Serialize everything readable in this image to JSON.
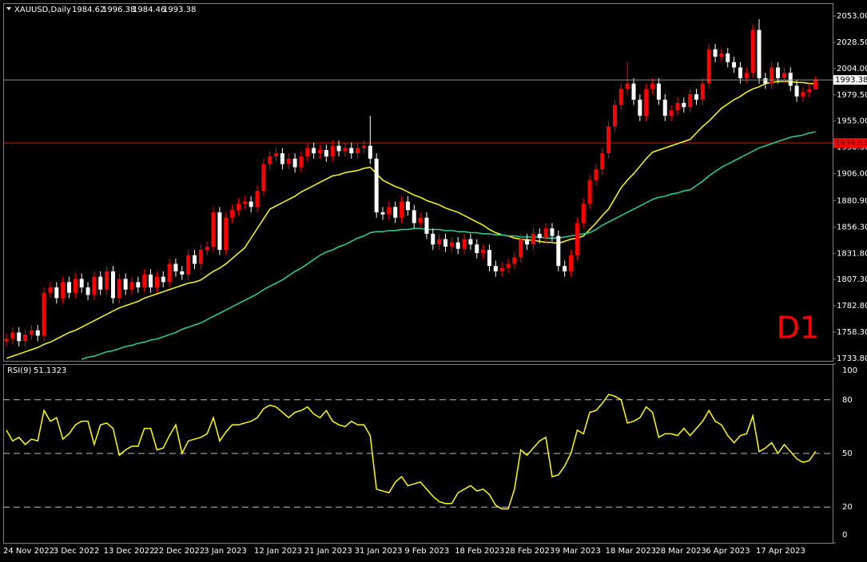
{
  "chart_data": [
    {
      "type": "candlestick",
      "title": "XAUUSD,Daily",
      "annotation": "D1",
      "annotation_color": "#ff0000",
      "categories": [
        "24 Nov 2022",
        null,
        null,
        null,
        null,
        null,
        null,
        null,
        "3 Dec 2022",
        null,
        null,
        null,
        null,
        null,
        null,
        null,
        "13 Dec 2022",
        null,
        null,
        null,
        null,
        null,
        null,
        null,
        "22 Dec 2022",
        null,
        null,
        null,
        null,
        null,
        null,
        null,
        "3 Jan 2023",
        null,
        null,
        null,
        null,
        null,
        null,
        null,
        "12 Jan 2023",
        null,
        null,
        null,
        null,
        null,
        null,
        null,
        "21 Jan 2023",
        null,
        null,
        null,
        null,
        null,
        null,
        null,
        "31 Jan 2023",
        null,
        null,
        null,
        null,
        null,
        null,
        null,
        "9 Feb 2023",
        null,
        null,
        null,
        null,
        null,
        null,
        null,
        "18 Feb 2023",
        null,
        null,
        null,
        null,
        null,
        null,
        null,
        "28 Feb 2023",
        null,
        null,
        null,
        null,
        null,
        null,
        null,
        "9 Mar 2023",
        null,
        null,
        null,
        null,
        null,
        null,
        null,
        "18 Mar 2023",
        null,
        null,
        null,
        null,
        null,
        null,
        null,
        "28 Mar 2023",
        null,
        null,
        null,
        null,
        null,
        null,
        null,
        "6 Apr 2023",
        null,
        null,
        null,
        null,
        null,
        null,
        null,
        "17 Apr 2023",
        null,
        null,
        null,
        null,
        null,
        null,
        null,
        null,
        null
      ],
      "open": [
        1750,
        1752,
        1758,
        1750,
        1756,
        1760,
        1755,
        1795,
        1800,
        1790,
        1805,
        1795,
        1808,
        1800,
        1793,
        1810,
        1798,
        1815,
        1790,
        1808,
        1798,
        1805,
        1800,
        1812,
        1800,
        1810,
        1805,
        1822,
        1815,
        1812,
        1830,
        1822,
        1835,
        1838,
        1870,
        1835,
        1865,
        1872,
        1878,
        1880,
        1875,
        1890,
        1915,
        1922,
        1925,
        1915,
        1920,
        1912,
        1922,
        1930,
        1925,
        1928,
        1922,
        1932,
        1927,
        1930,
        1925,
        1930,
        1932,
        1920,
        1870,
        1868,
        1875,
        1865,
        1880,
        1872,
        1860,
        1865,
        1850,
        1840,
        1845,
        1838,
        1842,
        1836,
        1845,
        1840,
        1832,
        1835,
        1820,
        1815,
        1818,
        1822,
        1828,
        1845,
        1840,
        1850,
        1846,
        1855,
        1848,
        1820,
        1815,
        1830,
        1860,
        1878,
        1900,
        1910,
        1925,
        1950,
        1970,
        1985,
        1990,
        1975,
        1960,
        1985,
        1990,
        1975,
        1960,
        1965,
        1972,
        1968,
        1980,
        1975,
        1990,
        2022,
        2015,
        2018,
        2010,
        2005,
        1995,
        2000,
        2040,
        1995,
        1990,
        2005,
        1995,
        2000,
        1988,
        1978,
        1982,
        1984.62
      ],
      "high": [
        1757,
        1763,
        1763,
        1761,
        1765,
        1765,
        1800,
        1805,
        1805,
        1810,
        1810,
        1813,
        1813,
        1805,
        1815,
        1815,
        1820,
        1820,
        1813,
        1813,
        1810,
        1810,
        1817,
        1817,
        1815,
        1815,
        1827,
        1827,
        1820,
        1835,
        1835,
        1840,
        1843,
        1875,
        1875,
        1870,
        1877,
        1883,
        1885,
        1885,
        1895,
        1920,
        1927,
        1930,
        1930,
        1925,
        1925,
        1927,
        1935,
        1935,
        1933,
        1933,
        1937,
        1937,
        1935,
        1935,
        1935,
        1937,
        1960,
        1925,
        1875,
        1880,
        1880,
        1885,
        1885,
        1877,
        1870,
        1870,
        1855,
        1850,
        1850,
        1847,
        1847,
        1850,
        1850,
        1845,
        1840,
        1840,
        1825,
        1823,
        1827,
        1833,
        1850,
        1850,
        1855,
        1855,
        1860,
        1860,
        1853,
        1825,
        1835,
        1865,
        1883,
        1905,
        1915,
        1930,
        1955,
        1975,
        1990,
        2010,
        1995,
        1980,
        1990,
        1995,
        1995,
        1980,
        1970,
        1977,
        1977,
        1985,
        1985,
        1995,
        2027,
        2027,
        2023,
        2023,
        2015,
        2010,
        2005,
        2045,
        2050,
        2000,
        2010,
        2010,
        2005,
        2005,
        1993,
        1987,
        1990,
        1996.38
      ],
      "low": [
        1745,
        1747,
        1745,
        1745,
        1751,
        1750,
        1750,
        1790,
        1785,
        1785,
        1790,
        1790,
        1795,
        1788,
        1788,
        1793,
        1793,
        1785,
        1785,
        1793,
        1793,
        1795,
        1795,
        1795,
        1795,
        1800,
        1800,
        1810,
        1807,
        1807,
        1817,
        1817,
        1830,
        1833,
        1830,
        1830,
        1860,
        1867,
        1873,
        1870,
        1870,
        1885,
        1910,
        1917,
        1910,
        1910,
        1907,
        1907,
        1917,
        1920,
        1920,
        1917,
        1917,
        1922,
        1922,
        1920,
        1920,
        1925,
        1915,
        1865,
        1863,
        1863,
        1860,
        1860,
        1867,
        1855,
        1855,
        1845,
        1835,
        1835,
        1833,
        1833,
        1831,
        1831,
        1835,
        1827,
        1827,
        1815,
        1810,
        1810,
        1813,
        1817,
        1823,
        1835,
        1835,
        1841,
        1841,
        1843,
        1815,
        1810,
        1810,
        1825,
        1855,
        1873,
        1895,
        1905,
        1920,
        1945,
        1965,
        1980,
        1970,
        1955,
        1955,
        1980,
        1970,
        1955,
        1955,
        1960,
        1963,
        1963,
        1970,
        1970,
        1985,
        2010,
        2010,
        2005,
        2000,
        1990,
        1990,
        1995,
        1990,
        1985,
        1985,
        1990,
        1990,
        1983,
        1973,
        1973,
        1977,
        1984.46
      ],
      "close": [
        1752,
        1758,
        1750,
        1756,
        1760,
        1755,
        1795,
        1800,
        1790,
        1805,
        1795,
        1808,
        1800,
        1793,
        1810,
        1798,
        1815,
        1790,
        1808,
        1798,
        1805,
        1800,
        1812,
        1800,
        1810,
        1805,
        1822,
        1815,
        1812,
        1830,
        1822,
        1835,
        1838,
        1870,
        1835,
        1865,
        1872,
        1878,
        1880,
        1875,
        1890,
        1915,
        1922,
        1925,
        1915,
        1920,
        1912,
        1922,
        1930,
        1925,
        1928,
        1922,
        1932,
        1927,
        1930,
        1925,
        1930,
        1932,
        1920,
        1870,
        1868,
        1875,
        1865,
        1880,
        1872,
        1860,
        1865,
        1850,
        1840,
        1845,
        1838,
        1842,
        1836,
        1845,
        1840,
        1832,
        1835,
        1820,
        1815,
        1818,
        1822,
        1828,
        1845,
        1840,
        1850,
        1846,
        1855,
        1848,
        1820,
        1815,
        1830,
        1860,
        1878,
        1900,
        1910,
        1925,
        1950,
        1970,
        1985,
        1990,
        1975,
        1960,
        1985,
        1990,
        1975,
        1960,
        1965,
        1972,
        1968,
        1980,
        1975,
        1990,
        2022,
        2015,
        2018,
        2010,
        2005,
        1995,
        2000,
        2040,
        1995,
        1990,
        2005,
        1995,
        2000,
        1988,
        1978,
        1982,
        1984.62,
        1993.38
      ],
      "up_color": "#ff0000",
      "down_color": "#ffffff",
      "overlays": [
        {
          "color": "#ffff00",
          "values": [
            1734,
            1736,
            1738,
            1740,
            1742,
            1744,
            1747,
            1749,
            1752,
            1755,
            1758,
            1760,
            1763,
            1766,
            1769,
            1772,
            1775,
            1778,
            1781,
            1783,
            1785,
            1787,
            1790,
            1792,
            1794,
            1796,
            1798,
            1800,
            1802,
            1804,
            1805,
            1807,
            1811,
            1815,
            1818,
            1822,
            1827,
            1832,
            1837,
            1846,
            1855,
            1864,
            1873,
            1876,
            1879,
            1882,
            1885,
            1889,
            1892,
            1895,
            1898,
            1901,
            1904,
            1905,
            1907,
            1908,
            1909,
            1911,
            1912,
            1906,
            1900,
            1897,
            1894,
            1892,
            1889,
            1886,
            1884,
            1881,
            1879,
            1877,
            1874,
            1872,
            1870,
            1867,
            1864,
            1861,
            1858,
            1854,
            1851,
            1849,
            1848,
            1846,
            1845,
            1844,
            1844,
            1843,
            1842,
            1842,
            1841,
            1843,
            1845,
            1846,
            1848,
            1854,
            1860,
            1867,
            1873,
            1883,
            1893,
            1900,
            1906,
            1913,
            1920,
            1926,
            1928,
            1930,
            1932,
            1934,
            1936,
            1938,
            1944,
            1950,
            1955,
            1961,
            1967,
            1971,
            1975,
            1978,
            1982,
            1985,
            1987,
            1990,
            1991,
            1992,
            1992,
            1992,
            1991,
            1991,
            1990,
            1990
          ]
        },
        {
          "color": "#26d39b",
          "values": [
            null,
            null,
            null,
            null,
            null,
            null,
            null,
            null,
            null,
            null,
            null,
            null,
            1733,
            1735,
            1736,
            1738,
            1740,
            1741,
            1743,
            1745,
            1746,
            1748,
            1749,
            1751,
            1752,
            1754,
            1756,
            1758,
            1761,
            1763,
            1765,
            1767,
            1770,
            1773,
            1776,
            1779,
            1782,
            1785,
            1788,
            1791,
            1794,
            1798,
            1801,
            1804,
            1807,
            1811,
            1815,
            1818,
            1822,
            1826,
            1830,
            1833,
            1835,
            1838,
            1840,
            1843,
            1846,
            1848,
            1851,
            1852,
            1852,
            1853,
            1853,
            1854,
            1854,
            1855,
            1855,
            1854,
            1854,
            1854,
            1853,
            1853,
            1852,
            1852,
            1851,
            1851,
            1850,
            1850,
            1849,
            1849,
            1848,
            1848,
            1847,
            1847,
            1847,
            1847,
            1846,
            1846,
            1846,
            1847,
            1848,
            1849,
            1850,
            1851,
            1854,
            1858,
            1861,
            1864,
            1867,
            1870,
            1873,
            1876,
            1879,
            1882,
            1884,
            1885,
            1887,
            1888,
            1890,
            1891,
            1895,
            1899,
            1904,
            1908,
            1912,
            1915,
            1918,
            1921,
            1924,
            1927,
            1930,
            1932,
            1934,
            1936,
            1938,
            1940,
            1941,
            1942,
            1944,
            1945
          ]
        }
      ],
      "levels": [
        {
          "value": 1934.63,
          "color": "#ff0000"
        }
      ],
      "ylim": [
        1731.6,
        2064.9
      ],
      "yticks": [
        {
          "value": 2053,
          "label": "2053.00"
        },
        {
          "value": 2028.5,
          "label": "2028.50"
        },
        {
          "value": 2004,
          "label": "2004.00"
        },
        {
          "value": 1979.5,
          "label": "1979.50"
        },
        {
          "value": 1955,
          "label": "1955.00"
        },
        {
          "value": 1930.5,
          "label": "1930.50"
        },
        {
          "value": 1906,
          "label": "1906.00"
        },
        {
          "value": 1880.9,
          "label": "1880.90"
        },
        {
          "value": 1856.3,
          "label": "1856.30"
        },
        {
          "value": 1831.8,
          "label": "1831.80"
        },
        {
          "value": 1807.3,
          "label": "1807.30"
        },
        {
          "value": 1782.8,
          "label": "1782.80"
        },
        {
          "value": 1758.3,
          "label": "1758.30"
        },
        {
          "value": 1733.8,
          "label": "1733.80"
        }
      ]
    },
    {
      "type": "line",
      "title": "RSI(9)",
      "color": "#ffff00",
      "values": [
        63,
        57,
        59,
        55,
        58,
        57,
        74,
        68,
        70,
        58,
        61,
        66,
        68,
        68,
        55,
        66,
        67,
        64,
        49,
        52,
        54,
        54,
        64,
        64,
        52,
        53,
        60,
        66,
        50,
        57,
        58,
        59,
        61,
        70,
        57,
        62,
        66,
        66,
        67,
        68,
        70,
        75,
        77,
        76,
        73,
        70,
        73,
        74,
        76,
        72,
        70,
        74,
        68,
        66,
        65,
        68,
        66,
        66,
        60,
        30,
        29,
        28,
        34,
        37,
        32,
        33,
        34,
        30,
        26,
        23,
        22,
        22,
        28,
        30,
        32,
        29,
        30,
        27,
        21,
        19,
        19,
        30,
        52,
        49,
        53,
        57,
        59,
        37,
        38,
        43,
        50,
        63,
        61,
        73,
        74,
        78,
        83,
        82,
        80,
        67,
        68,
        70,
        76,
        73,
        59,
        61,
        61,
        60,
        64,
        60,
        64,
        68,
        74,
        68,
        66,
        60,
        56,
        60,
        61,
        71,
        51,
        53,
        56,
        50,
        55,
        51,
        47,
        45,
        46,
        51.1323
      ],
      "ylim": [
        0,
        100
      ],
      "yticks": [
        0,
        20,
        50,
        80,
        100
      ],
      "grid": true
    }
  ]
}
